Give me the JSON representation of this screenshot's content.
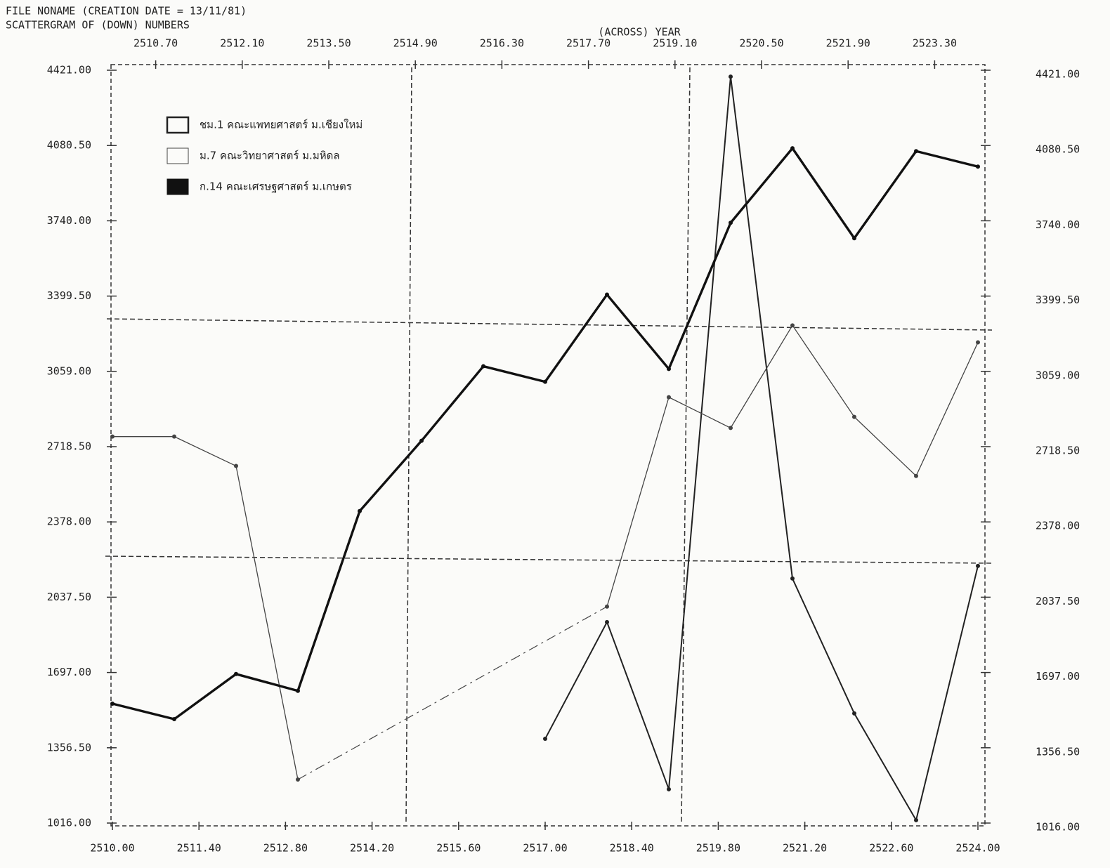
{
  "header": {
    "file_line": "FILE NONAME (CREATION DATE = 13/11/81)",
    "scatter_line": "SCATTERGRAM OF (DOWN) NUMBERS"
  },
  "chart_data": {
    "type": "line",
    "xlabel": "(ACROSS) YEAR",
    "x": [
      2510,
      2511,
      2512,
      2513,
      2514,
      2515,
      2516,
      2517,
      2518,
      2519,
      2520,
      2521,
      2522,
      2523,
      2524
    ],
    "series": [
      {
        "name": "ชม.1 คณะแพทยศาสตร์ ม.เชียงใหม่",
        "color": "#222222",
        "values": [
          null,
          null,
          null,
          null,
          null,
          null,
          null,
          1397,
          1925,
          1169,
          4392,
          2122,
          1512,
          1029,
          2179
        ]
      },
      {
        "name": "ม.7 คณะวิทยาศาสตร์ ม.มหิดล",
        "color": "#444444",
        "gaps": "dashed",
        "values": [
          2764,
          2764,
          2631,
          1213,
          null,
          null,
          null,
          null,
          1995,
          2942,
          2803,
          3267,
          2853,
          2586,
          3190
        ]
      },
      {
        "name": "ก.14 คณะเศรษฐศาสตร์ ม.เกษตร",
        "color": "#111111",
        "values": [
          1556,
          1486,
          1690,
          1614,
          2427,
          2745,
          3082,
          3012,
          3406,
          3070,
          3731,
          4068,
          3661,
          4055,
          3985
        ]
      }
    ],
    "xlim": [
      2510,
      2524
    ],
    "xticks": [
      {
        "value": 2510,
        "label": "2510.00"
      },
      {
        "value": 2511.4,
        "label": "2511.40"
      },
      {
        "value": 2512.8,
        "label": "2512.80"
      },
      {
        "value": 2514.2,
        "label": "2514.20"
      },
      {
        "value": 2515.6,
        "label": "2515.60"
      },
      {
        "value": 2517,
        "label": "2517.00"
      },
      {
        "value": 2518.4,
        "label": "2518.40"
      },
      {
        "value": 2519.8,
        "label": "2519.80"
      },
      {
        "value": 2521.2,
        "label": "2521.20"
      },
      {
        "value": 2522.6,
        "label": "2522.60"
      },
      {
        "value": 2524,
        "label": "2524.00"
      }
    ],
    "x2ticks": [
      {
        "value": 2510.7,
        "label": "2510.70"
      },
      {
        "value": 2512.1,
        "label": "2512.10"
      },
      {
        "value": 2513.5,
        "label": "2513.50"
      },
      {
        "value": 2514.9,
        "label": "2514.90"
      },
      {
        "value": 2516.3,
        "label": "2516.30"
      },
      {
        "value": 2517.7,
        "label": "2517.70"
      },
      {
        "value": 2519.1,
        "label": "2519.10"
      },
      {
        "value": 2520.5,
        "label": "2520.50"
      },
      {
        "value": 2521.9,
        "label": "2521.90"
      },
      {
        "value": 2523.3,
        "label": "2523.30"
      }
    ],
    "ylim": [
      1016,
      4421
    ],
    "yticks": [
      {
        "value": 4421,
        "label": "4421.00"
      },
      {
        "value": 4080.5,
        "label": "4080.50"
      },
      {
        "value": 3740,
        "label": "3740.00"
      },
      {
        "value": 3399.5,
        "label": "3399.50"
      },
      {
        "value": 3059,
        "label": "3059.00"
      },
      {
        "value": 2718.5,
        "label": "2718.50"
      },
      {
        "value": 2378,
        "label": "2378.00"
      },
      {
        "value": 2037.5,
        "label": "2037.50"
      },
      {
        "value": 1697,
        "label": "1697.00"
      },
      {
        "value": 1356.5,
        "label": "1356.50"
      },
      {
        "value": 1016,
        "label": "1016.00"
      }
    ]
  }
}
